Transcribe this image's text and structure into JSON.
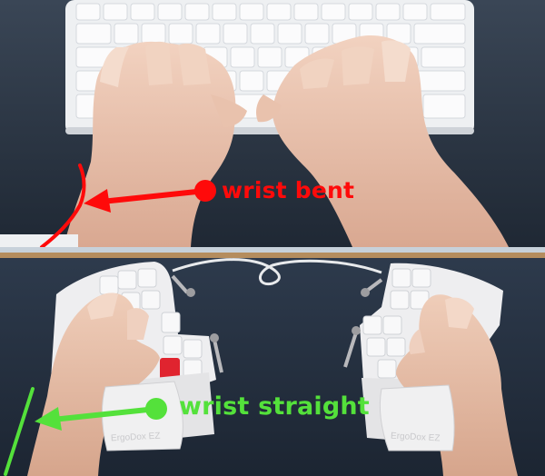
{
  "top_panel": {
    "annotation": "wrist bent",
    "color": "#ff0a0a"
  },
  "bottom_panel": {
    "annotation": "wrist straight",
    "color": "#54e13b",
    "keyboard_label_left": "ErgoDox EZ",
    "keyboard_label_right": "ErgoDox EZ"
  }
}
